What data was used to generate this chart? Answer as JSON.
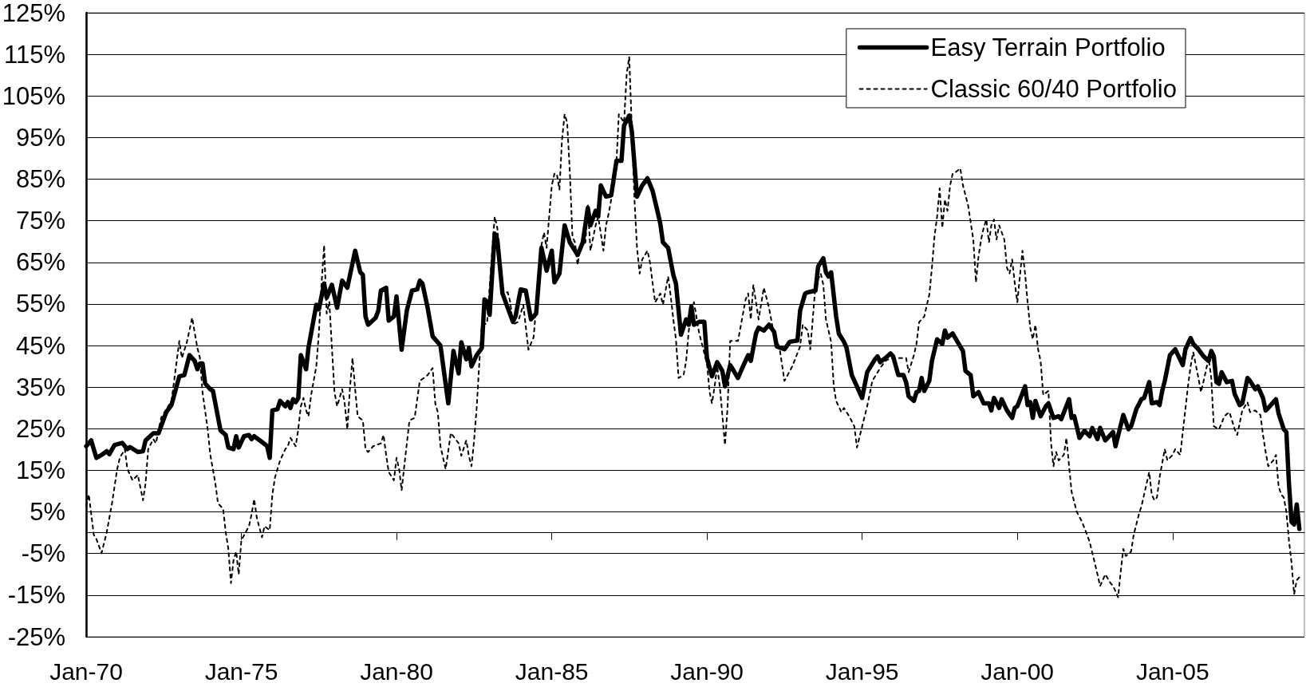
{
  "chart_data": {
    "type": "line",
    "series": [
      {
        "name": "Easy Terrain Portfolio",
        "color": "#000000",
        "line_style": "solid",
        "x": [
          "1970-01",
          "1970-03",
          "1970-05",
          "1970-07",
          "1970-09",
          "1970-10",
          "1970-12",
          "1971-03",
          "1971-05",
          "1971-06",
          "1971-09",
          "1971-11",
          "1971-12",
          "1972-03",
          "1972-05",
          "1972-08",
          "1972-10",
          "1973-01",
          "1973-03",
          "1973-05",
          "1973-07",
          "1973-08",
          "1973-09",
          "1973-10",
          "1973-11",
          "1974-01",
          "1974-02",
          "1974-05",
          "1974-07",
          "1974-08",
          "1974-10",
          "1974-11",
          "1974-12",
          "1975-02",
          "1975-04",
          "1975-05",
          "1975-06",
          "1975-09",
          "1975-11",
          "1975-12",
          "1976-01",
          "1976-03",
          "1976-04",
          "1976-06",
          "1976-07",
          "1976-08",
          "1976-09",
          "1976-10",
          "1976-11",
          "1976-12",
          "1977-02",
          "1977-03",
          "1977-06",
          "1977-07",
          "1977-09",
          "1977-10",
          "1977-12",
          "1978-02",
          "1978-04",
          "1978-06",
          "1978-09",
          "1978-11",
          "1978-12",
          "1979-01",
          "1979-02",
          "1979-05",
          "1979-06",
          "1979-07",
          "1979-09",
          "1979-10",
          "1979-12",
          "1980-01",
          "1980-03",
          "1980-05",
          "1980-07",
          "1980-09",
          "1980-10",
          "1980-11",
          "1981-01",
          "1981-03",
          "1981-06",
          "1981-09",
          "1981-11",
          "1982-01",
          "1982-02",
          "1982-04",
          "1982-05",
          "1982-06",
          "1982-08",
          "1982-10",
          "1982-11",
          "1982-12",
          "1983-01",
          "1983-03",
          "1983-04",
          "1983-06",
          "1983-08",
          "1983-10",
          "1983-11",
          "1984-01",
          "1984-03",
          "1984-05",
          "1984-07",
          "1984-09",
          "1984-11",
          "1985-01",
          "1985-02",
          "1985-04",
          "1985-06",
          "1985-08",
          "1985-11",
          "1986-01",
          "1986-03",
          "1986-04",
          "1986-06",
          "1986-07",
          "1986-08",
          "1986-10",
          "1986-12",
          "1987-02",
          "1987-04",
          "1987-05",
          "1987-07",
          "1987-08",
          "1987-10",
          "1987-12",
          "1988-02",
          "1988-04",
          "1988-06",
          "1988-07",
          "1988-08",
          "1988-10",
          "1988-12",
          "1989-01",
          "1989-03",
          "1989-05",
          "1989-06",
          "1989-07",
          "1989-08",
          "1989-10",
          "1989-12",
          "1990-01",
          "1990-03",
          "1990-05",
          "1990-07",
          "1990-08",
          "1990-10",
          "1990-11",
          "1991-01",
          "1991-03",
          "1991-05",
          "1991-06",
          "1991-08",
          "1991-09",
          "1991-11",
          "1992-01",
          "1992-03",
          "1992-04",
          "1992-07",
          "1992-09",
          "1992-12",
          "1993-01",
          "1993-03",
          "1993-04",
          "1993-07",
          "1993-08",
          "1993-10",
          "1993-11",
          "1993-12",
          "1994-01",
          "1994-03",
          "1994-04",
          "1994-06",
          "1994-07",
          "1994-09",
          "1995-01",
          "1995-03",
          "1995-06",
          "1995-07",
          "1995-08",
          "1995-10",
          "1995-12",
          "1996-01",
          "1996-03",
          "1996-05",
          "1996-06",
          "1996-07",
          "1996-09",
          "1996-10",
          "1996-11",
          "1996-12",
          "1997-01",
          "1997-03",
          "1997-04",
          "1997-06",
          "1997-08",
          "1997-09",
          "1997-10",
          "1997-12",
          "1998-01",
          "1998-04",
          "1998-05",
          "1998-07",
          "1998-08",
          "1998-10",
          "1998-12",
          "1999-02",
          "1999-03",
          "1999-04",
          "1999-06",
          "1999-07",
          "1999-09",
          "1999-11",
          "1999-12",
          "2000-01",
          "2000-04",
          "2000-05",
          "2000-06",
          "2000-07",
          "2000-08",
          "2000-10",
          "2000-12",
          "2001-01",
          "2001-03",
          "2001-05",
          "2001-06",
          "2001-09",
          "2001-10",
          "2001-11",
          "2002-01",
          "2002-03",
          "2002-05",
          "2002-06",
          "2002-08",
          "2002-09",
          "2002-11",
          "2003-02",
          "2003-03",
          "2003-06",
          "2003-08",
          "2003-09",
          "2003-11",
          "2004-01",
          "2004-02",
          "2004-04",
          "2004-05",
          "2004-07",
          "2004-08",
          "2004-09",
          "2004-10",
          "2004-12",
          "2005-01",
          "2005-02",
          "2005-05",
          "2005-06",
          "2005-08",
          "2005-09",
          "2005-11",
          "2006-01",
          "2006-03",
          "2006-04",
          "2006-05",
          "2006-06",
          "2006-07",
          "2006-08",
          "2006-10",
          "2006-12",
          "2007-01",
          "2007-03",
          "2007-04",
          "2007-06",
          "2007-07",
          "2007-09",
          "2007-10",
          "2007-12",
          "2008-01",
          "2008-02",
          "2008-05",
          "2008-06",
          "2008-08",
          "2008-09",
          "2008-10",
          "2008-11",
          "2008-12",
          "2009-01",
          "2009-02"
        ],
        "values": [
          20.8,
          22.2,
          18.0,
          18.7,
          19.6,
          18.9,
          21.1,
          21.6,
          20.1,
          20.6,
          19.4,
          19.6,
          22.2,
          23.9,
          23.9,
          29.0,
          30.7,
          37.6,
          37.9,
          42.7,
          41.3,
          39.3,
          40.7,
          40.7,
          35.9,
          34.5,
          34.1,
          24.6,
          23.5,
          20.5,
          20.1,
          23.2,
          20.5,
          23.2,
          23.5,
          22.5,
          23.2,
          21.8,
          20.8,
          18.0,
          29.4,
          29.7,
          31.7,
          30.4,
          31.4,
          30.0,
          32.1,
          31.4,
          32.4,
          42.7,
          39.3,
          44.5,
          54.8,
          53.7,
          59.9,
          56.5,
          59.6,
          54.1,
          60.6,
          58.9,
          67.8,
          62.6,
          62.0,
          52.0,
          50.0,
          51.7,
          53.4,
          58.2,
          58.9,
          51.0,
          52.0,
          56.8,
          44.0,
          53.4,
          58.2,
          58.5,
          60.6,
          59.9,
          54.1,
          47.2,
          45.0,
          31.1,
          43.7,
          38.3,
          45.8,
          41.7,
          44.4,
          40.0,
          42.7,
          44.4,
          56.1,
          55.5,
          52.4,
          71.9,
          70.5,
          57.5,
          54.1,
          50.7,
          52.0,
          58.5,
          58.2,
          51.3,
          52.7,
          68.5,
          63.0,
          67.8,
          60.2,
          62.3,
          73.9,
          69.8,
          66.8,
          69.8,
          78.1,
          73.9,
          77.4,
          76.0,
          83.5,
          80.8,
          81.1,
          89.4,
          89.4,
          97.9,
          100.3,
          96.5,
          80.8,
          83.5,
          85.2,
          82.2,
          77.0,
          74.3,
          69.8,
          68.5,
          62.0,
          59.9,
          47.6,
          51.3,
          50.0,
          54.4,
          50.0,
          50.7,
          50.7,
          42.0,
          37.6,
          41.0,
          38.9,
          35.2,
          40.3,
          39.3,
          37.2,
          40.0,
          42.7,
          41.3,
          47.9,
          49.3,
          48.6,
          50.0,
          48.3,
          44.8,
          44.1,
          45.9,
          46.2,
          53.4,
          57.5,
          57.8,
          58.2,
          64.0,
          66.0,
          62.6,
          61.6,
          62.6,
          52.0,
          47.9,
          45.9,
          44.5,
          37.9,
          32.4,
          38.6,
          41.7,
          42.4,
          41.0,
          42.0,
          43.1,
          42.4,
          37.9,
          37.9,
          36.2,
          32.8,
          31.7,
          33.8,
          34.1,
          37.2,
          34.1,
          36.5,
          41.3,
          46.5,
          45.4,
          48.6,
          46.9,
          47.9,
          46.8,
          43.7,
          38.9,
          37.9,
          32.8,
          33.8,
          31.1,
          31.1,
          29.4,
          32.4,
          30.0,
          32.1,
          29.4,
          27.6,
          30.0,
          30.4,
          35.2,
          30.7,
          31.4,
          27.6,
          31.7,
          28.0,
          30.4,
          31.1,
          27.6,
          28.0,
          27.3,
          32.1,
          27.6,
          28.0,
          22.8,
          24.5,
          23.2,
          25.2,
          22.5,
          25.2,
          22.2,
          24.2,
          20.8,
          28.3,
          24.9,
          25.6,
          29.7,
          32.1,
          32.4,
          36.2,
          31.1,
          31.4,
          30.7,
          34.1,
          36.5,
          42.7,
          43.4,
          44.1,
          40.3,
          44.1,
          46.8,
          45.4,
          44.1,
          42.4,
          41.3,
          43.7,
          42.4,
          36.2,
          35.8,
          38.6,
          36.2,
          36.5,
          33.4,
          30.7,
          31.1,
          37.2,
          36.5,
          34.5,
          35.2,
          32.4,
          29.4,
          30.0,
          32.1,
          28.7,
          24.9,
          24.2,
          11.9,
          2.6,
          2.0,
          6.8,
          0.9
        ]
      },
      {
        "name": "Classic 60/40 Portfolio",
        "color": "#000000",
        "line_style": "dotted",
        "x": [
          "1970-01",
          "1970-02",
          "1970-04",
          "1970-05",
          "1970-07",
          "1970-09",
          "1970-11",
          "1971-01",
          "1971-02",
          "1971-04",
          "1971-05",
          "1971-07",
          "1971-09",
          "1971-11",
          "1971-12",
          "1972-01",
          "1972-03",
          "1972-04",
          "1972-06",
          "1972-10",
          "1972-11",
          "1973-01",
          "1973-02",
          "1973-04",
          "1973-06",
          "1973-08",
          "1973-09",
          "1973-10",
          "1973-12",
          "1974-01",
          "1974-03",
          "1974-04",
          "1974-06",
          "1974-07",
          "1974-08",
          "1974-09",
          "1974-10",
          "1974-11",
          "1974-12",
          "1975-01",
          "1975-04",
          "1975-05",
          "1975-06",
          "1975-07",
          "1975-09",
          "1975-10",
          "1975-12",
          "1976-01",
          "1976-02",
          "1976-04",
          "1976-06",
          "1976-07",
          "1976-08",
          "1976-10",
          "1976-11",
          "1976-12",
          "1977-01",
          "1977-02",
          "1977-03",
          "1977-04",
          "1977-06",
          "1977-07",
          "1977-08",
          "1977-09",
          "1977-10",
          "1977-11",
          "1977-12",
          "1978-01",
          "1978-02",
          "1978-04",
          "1978-05",
          "1978-06",
          "1978-07",
          "1978-08",
          "1978-09",
          "1978-10",
          "1978-12",
          "1979-01",
          "1979-02",
          "1979-04",
          "1979-07",
          "1979-08",
          "1979-09",
          "1979-10",
          "1979-12",
          "1980-01",
          "1980-02",
          "1980-03",
          "1980-04",
          "1980-06",
          "1980-08",
          "1980-10",
          "1981-01",
          "1981-03",
          "1981-04",
          "1981-05",
          "1981-06",
          "1981-08",
          "1981-10",
          "1982-01",
          "1982-02",
          "1982-04",
          "1982-05",
          "1982-06",
          "1982-07",
          "1982-08",
          "1982-09",
          "1982-10",
          "1982-12",
          "1983-03",
          "1983-04",
          "1983-06",
          "1983-08",
          "1983-09",
          "1983-10",
          "1983-12",
          "1984-02",
          "1984-04",
          "1984-06",
          "1984-09",
          "1984-10",
          "1984-11",
          "1985-01",
          "1985-02",
          "1985-03",
          "1985-04",
          "1985-05",
          "1985-06",
          "1985-07",
          "1985-08",
          "1985-09",
          "1985-10",
          "1985-11",
          "1985-12",
          "1986-02",
          "1986-03",
          "1986-04",
          "1986-06",
          "1986-07",
          "1986-09",
          "1986-10",
          "1986-11",
          "1986-12",
          "1987-02",
          "1987-03",
          "1987-05",
          "1987-06",
          "1987-07",
          "1987-08",
          "1987-09",
          "1987-10",
          "1987-11",
          "1987-12",
          "1988-02",
          "1988-03",
          "1988-05",
          "1988-07",
          "1988-08",
          "1988-10",
          "1988-11",
          "1988-12",
          "1989-01",
          "1989-02",
          "1989-04",
          "1989-05",
          "1989-06",
          "1989-07",
          "1989-08",
          "1989-10",
          "1990-01",
          "1990-02",
          "1990-03",
          "1990-04",
          "1990-05",
          "1990-06",
          "1990-08",
          "1990-09",
          "1990-10",
          "1991-01",
          "1991-04",
          "1991-05",
          "1991-06",
          "1991-07",
          "1991-08",
          "1991-09",
          "1991-11",
          "1992-01",
          "1992-02",
          "1992-03",
          "1992-05",
          "1992-07",
          "1992-10",
          "1993-01",
          "1993-02",
          "1993-04",
          "1993-05",
          "1993-07",
          "1993-09",
          "1993-10",
          "1993-11",
          "1994-01",
          "1994-02",
          "1994-03",
          "1994-05",
          "1994-06",
          "1994-08",
          "1994-10",
          "1994-11",
          "1995-01",
          "1995-03",
          "1995-05",
          "1995-08",
          "1995-10",
          "1995-12",
          "1996-03",
          "1996-06",
          "1996-07",
          "1996-09",
          "1996-10",
          "1996-11",
          "1997-01",
          "1997-02",
          "1997-03",
          "1997-04",
          "1997-05",
          "1997-06",
          "1997-07",
          "1997-08",
          "1997-09",
          "1997-10",
          "1997-11",
          "1997-12",
          "1998-01",
          "1998-03",
          "1998-04",
          "1998-06",
          "1998-07",
          "1998-08",
          "1998-09",
          "1998-10",
          "1998-11",
          "1998-12",
          "1999-01",
          "1999-02",
          "1999-03",
          "1999-04",
          "1999-05",
          "1999-06",
          "1999-08",
          "1999-09",
          "1999-10",
          "1999-11",
          "1999-12",
          "2000-01",
          "2000-03",
          "2000-04",
          "2000-05",
          "2000-06",
          "2000-07",
          "2000-08",
          "2000-09",
          "2000-10",
          "2000-11",
          "2001-01",
          "2001-02",
          "2001-03",
          "2001-04",
          "2001-05",
          "2001-07",
          "2001-08",
          "2001-09",
          "2001-10",
          "2001-12",
          "2002-02",
          "2002-04",
          "2002-05",
          "2002-07",
          "2002-08",
          "2002-09",
          "2002-11",
          "2003-01",
          "2003-02",
          "2003-04",
          "2003-05",
          "2003-06",
          "2003-07",
          "2003-09",
          "2003-10",
          "2003-12",
          "2004-01",
          "2004-02",
          "2004-04",
          "2004-05",
          "2004-06",
          "2004-07",
          "2004-08",
          "2004-10",
          "2004-11",
          "2005-01",
          "2005-02",
          "2005-04",
          "2005-05",
          "2005-07",
          "2005-08",
          "2005-09",
          "2005-11",
          "2005-12",
          "2006-01",
          "2006-03",
          "2006-04",
          "2006-05",
          "2006-07",
          "2006-08",
          "2006-09",
          "2006-11",
          "2007-01",
          "2007-02",
          "2007-03",
          "2007-04",
          "2007-06",
          "2007-07",
          "2007-09",
          "2007-11",
          "2007-12",
          "2008-01",
          "2008-02",
          "2008-04",
          "2008-05",
          "2008-06",
          "2008-07",
          "2008-08",
          "2008-09",
          "2008-10",
          "2008-11",
          "2008-12",
          "2009-01",
          "2009-02"
        ],
        "values": [
          6.4,
          9.2,
          -0.5,
          -1.5,
          -4.9,
          0.2,
          7.1,
          15.3,
          18.0,
          20.1,
          15.3,
          12.6,
          13.9,
          7.8,
          11.9,
          20.1,
          22.5,
          21.5,
          27.6,
          31.7,
          36.5,
          46.1,
          42.0,
          45.9,
          51.7,
          44.5,
          42.0,
          33.8,
          24.9,
          18.7,
          11.9,
          7.1,
          5.7,
          0.2,
          -3.9,
          -12.1,
          -6.6,
          -4.5,
          -10.0,
          -1.8,
          1.6,
          4.4,
          8.1,
          3.7,
          -1.1,
          1.6,
          0.6,
          9.2,
          13.3,
          17.4,
          20.1,
          20.8,
          22.8,
          20.8,
          24.9,
          30.4,
          32.4,
          29.4,
          28.0,
          33.1,
          40.0,
          47.9,
          59.6,
          69.1,
          52.7,
          55.5,
          44.8,
          33.8,
          30.4,
          34.5,
          31.1,
          24.9,
          34.5,
          42.0,
          34.5,
          28.0,
          27.0,
          20.1,
          19.4,
          20.8,
          21.5,
          23.5,
          18.7,
          14.6,
          12.6,
          18.0,
          15.3,
          10.2,
          16.0,
          27.0,
          27.6,
          36.5,
          37.9,
          39.6,
          31.1,
          29.0,
          20.8,
          15.3,
          24.0,
          21.5,
          18.5,
          22.2,
          18.5,
          16.0,
          22.0,
          30.0,
          40.7,
          50.0,
          50.3,
          76.0,
          73.3,
          57.5,
          57.8,
          55.4,
          50.0,
          50.7,
          54.8,
          44.0,
          47.0,
          69.1,
          72.2,
          68.5,
          83.5,
          86.3,
          86.3,
          82.5,
          94.5,
          100.6,
          98.6,
          86.9,
          71.2,
          69.8,
          64.4,
          68.5,
          69.8,
          78.7,
          67.8,
          73.9,
          76.0,
          67.8,
          73.9,
          76.7,
          80.1,
          89.0,
          100.6,
          98.6,
          110.2,
          114.4,
          97.2,
          80.1,
          68.5,
          62.3,
          65.7,
          67.8,
          65.0,
          55.4,
          57.5,
          54.8,
          61.6,
          56.8,
          51.3,
          46.5,
          37.2,
          37.9,
          41.3,
          48.6,
          52.7,
          55.4,
          48.0,
          40.7,
          33.8,
          31.1,
          35.2,
          40.0,
          35.2,
          21.1,
          30.4,
          46.1,
          46.1,
          56.1,
          57.5,
          51.3,
          59.6,
          55.4,
          51.3,
          58.9,
          54.1,
          50.7,
          47.2,
          44.8,
          36.5,
          40.0,
          44.8,
          50.0,
          48.6,
          44.1,
          59.6,
          62.3,
          59.6,
          51.3,
          45.9,
          35.2,
          31.7,
          29.0,
          30.0,
          28.0,
          25.6,
          20.5,
          25.6,
          30.4,
          36.5,
          39.6,
          41.3,
          42.0,
          42.0,
          42.0,
          38.6,
          42.7,
          45.4,
          50.6,
          52.0,
          54.8,
          57.2,
          63.7,
          71.2,
          76.0,
          82.8,
          73.3,
          80.1,
          77.4,
          83.5,
          86.3,
          86.6,
          87.6,
          83.5,
          78.7,
          74.6,
          70.5,
          60.2,
          66.4,
          70.5,
          73.3,
          75.3,
          69.8,
          73.9,
          75.3,
          70.5,
          73.9,
          70.5,
          63.7,
          62.3,
          65.7,
          60.2,
          55.4,
          67.8,
          62.3,
          55.4,
          49.3,
          46.5,
          50.0,
          44.1,
          41.3,
          33.1,
          34.1,
          21.5,
          16.0,
          19.4,
          17.4,
          18.7,
          22.8,
          16.0,
          9.8,
          5.0,
          2.6,
          -0.5,
          -2.2,
          -7.3,
          -10.0,
          -12.8,
          -10.0,
          -12.1,
          -12.8,
          -15.5,
          -9.4,
          -3.9,
          -5.6,
          -4.5,
          -0.5,
          4.4,
          6.4,
          9.2,
          14.6,
          9.2,
          7.8,
          8.5,
          13.3,
          20.1,
          17.4,
          18.7,
          20.1,
          18.7,
          24.2,
          35.2,
          40.0,
          43.4,
          37.2,
          33.8,
          36.5,
          42.0,
          37.2,
          25.6,
          24.9,
          26.3,
          28.0,
          29.0,
          24.9,
          23.5,
          26.3,
          29.4,
          31.4,
          29.0,
          29.4,
          28.3,
          23.5,
          19.4,
          16.0,
          17.4,
          18.7,
          11.2,
          9.2,
          8.5,
          5.0,
          -1.8,
          -7.3,
          -14.8,
          -11.4,
          -10.7
        ]
      }
    ],
    "xlim": [
      "1970-01",
      "2009-04"
    ],
    "xticks": [
      {
        "value": "1970-01",
        "label": "Jan-70"
      },
      {
        "value": "1975-01",
        "label": "Jan-75"
      },
      {
        "value": "1980-01",
        "label": "Jan-80"
      },
      {
        "value": "1985-01",
        "label": "Jan-85"
      },
      {
        "value": "1990-01",
        "label": "Jan-90"
      },
      {
        "value": "1995-01",
        "label": "Jan-95"
      },
      {
        "value": "2000-01",
        "label": "Jan-00"
      },
      {
        "value": "2005-01",
        "label": "Jan-05"
      }
    ],
    "ylim": [
      -25,
      125
    ],
    "yticks": [
      {
        "value": -25,
        "label": "-25%"
      },
      {
        "value": -15,
        "label": "-15%"
      },
      {
        "value": -5,
        "label": "-5%"
      },
      {
        "value": 5,
        "label": "5%"
      },
      {
        "value": 15,
        "label": "15%"
      },
      {
        "value": 25,
        "label": "25%"
      },
      {
        "value": 35,
        "label": "35%"
      },
      {
        "value": 45,
        "label": "45%"
      },
      {
        "value": 55,
        "label": "55%"
      },
      {
        "value": 65,
        "label": "65%"
      },
      {
        "value": 75,
        "label": "75%"
      },
      {
        "value": 85,
        "label": "85%"
      },
      {
        "value": 95,
        "label": "95%"
      },
      {
        "value": 105,
        "label": "105%"
      },
      {
        "value": 115,
        "label": "115%"
      },
      {
        "value": 125,
        "label": "125%"
      }
    ],
    "grid": "y",
    "legend": "top right",
    "marker": "none"
  }
}
